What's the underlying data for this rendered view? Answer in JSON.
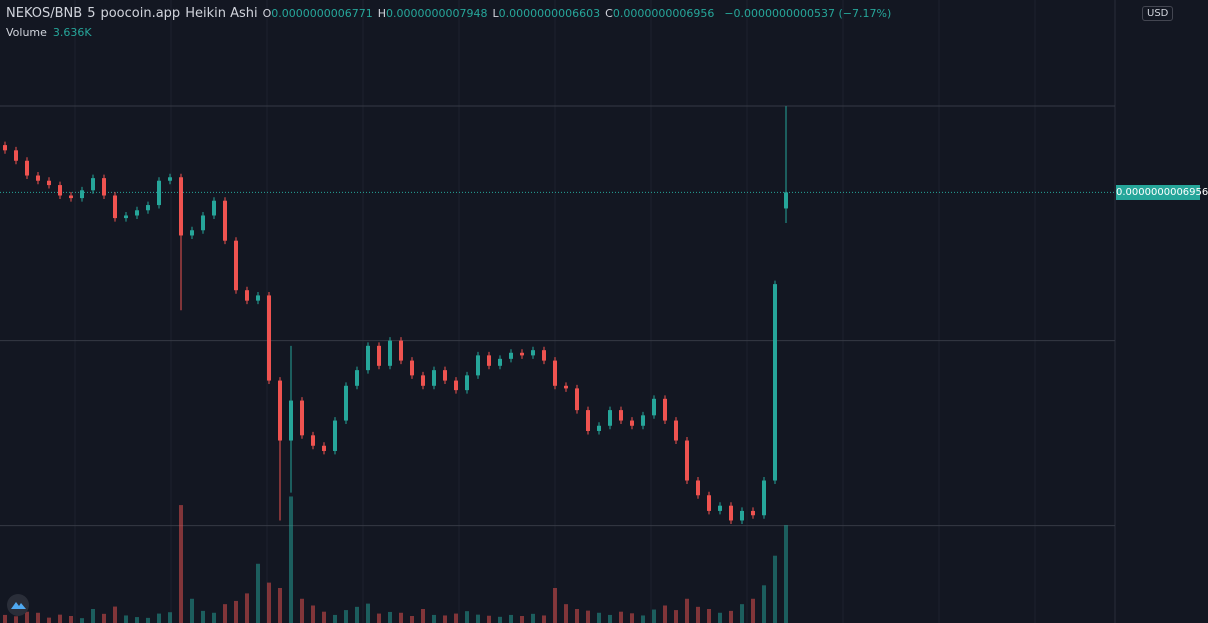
{
  "chart_data": {
    "type": "candlestick",
    "legend": {
      "symbol": "NEKOS/BNB",
      "interval": "5",
      "source": "poocoin.app",
      "style": "Heikin Ashi",
      "ohlc": [
        {
          "key": "O",
          "value": "0.0000000006771"
        },
        {
          "key": "H",
          "value": "0.0000000007948"
        },
        {
          "key": "L",
          "value": "0.0000000006603"
        },
        {
          "key": "C",
          "value": "0.0000000006956"
        }
      ],
      "change": "−0.0000000000537 (−7.17%)",
      "volume_title": "Volume",
      "volume_value": "3.636K"
    },
    "currency": "USD",
    "last_price": {
      "value": 6.956e-10,
      "label": "0.0000000006956"
    },
    "up_color": "#26a69a",
    "down_color": "#ef5350",
    "ylim": [
      2e-10,
      9.17e-10
    ],
    "hlines": [
      7.95e-10,
      5.25e-10,
      3.12e-10
    ],
    "volume_lim": [
      0,
      5200
    ],
    "open": [
      7.5e-10,
      7.44e-10,
      7.32e-10,
      7.15e-10,
      7.09e-10,
      7.04e-10,
      6.92e-10,
      6.89e-10,
      6.98e-10,
      7.12e-10,
      6.92e-10,
      6.66e-10,
      6.69e-10,
      6.75e-10,
      6.81e-10,
      7.09e-10,
      7.13e-10,
      6.46e-10,
      6.52e-10,
      6.69e-10,
      6.86e-10,
      6.4e-10,
      5.83e-10,
      5.71e-10,
      5.77e-10,
      4.79e-10,
      4.1e-10,
      4.56e-10,
      4.16e-10,
      4.04e-10,
      3.98e-10,
      4.33e-10,
      4.73e-10,
      4.91e-10,
      5.19e-10,
      4.96e-10,
      5.25e-10,
      5.02e-10,
      4.85e-10,
      4.73e-10,
      4.91e-10,
      4.79e-10,
      4.68e-10,
      4.85e-10,
      5.08e-10,
      4.96e-10,
      5.04e-10,
      5.11e-10,
      5.08e-10,
      5.14e-10,
      5.02e-10,
      4.73e-10,
      4.7e-10,
      4.45e-10,
      4.21e-10,
      4.27e-10,
      4.45e-10,
      4.33e-10,
      4.27e-10,
      4.39e-10,
      4.58e-10,
      4.33e-10,
      4.1e-10,
      3.64e-10,
      3.47e-10,
      3.29e-10,
      3.35e-10,
      3.18e-10,
      3.29e-10,
      3.24e-10,
      3.64e-10,
      6.771e-10
    ],
    "high": [
      7.54e-10,
      7.48e-10,
      7.36e-10,
      7.19e-10,
      7.13e-10,
      7.08e-10,
      6.96e-10,
      7.02e-10,
      7.16e-10,
      7.16e-10,
      6.96e-10,
      6.73e-10,
      6.79e-10,
      6.85e-10,
      7.13e-10,
      7.17e-10,
      7.17e-10,
      6.56e-10,
      6.73e-10,
      6.9e-10,
      6.9e-10,
      6.44e-10,
      5.87e-10,
      5.81e-10,
      5.81e-10,
      4.83e-10,
      5.19e-10,
      4.6e-10,
      4.2e-10,
      4.08e-10,
      4.37e-10,
      4.77e-10,
      4.95e-10,
      5.23e-10,
      5.23e-10,
      5.29e-10,
      5.29e-10,
      5.06e-10,
      4.89e-10,
      4.95e-10,
      4.95e-10,
      4.83e-10,
      4.89e-10,
      5.12e-10,
      5.12e-10,
      5.08e-10,
      5.15e-10,
      5.15e-10,
      5.18e-10,
      5.18e-10,
      5.06e-10,
      4.77e-10,
      4.74e-10,
      4.49e-10,
      4.31e-10,
      4.49e-10,
      4.49e-10,
      4.37e-10,
      4.43e-10,
      4.62e-10,
      4.62e-10,
      4.37e-10,
      4.14e-10,
      3.68e-10,
      3.51e-10,
      3.39e-10,
      3.39e-10,
      3.33e-10,
      3.33e-10,
      3.68e-10,
      5.94e-10,
      7.948e-10
    ],
    "low": [
      7.4e-10,
      7.28e-10,
      7.11e-10,
      7.05e-10,
      7e-10,
      6.88e-10,
      6.85e-10,
      6.85e-10,
      6.94e-10,
      6.88e-10,
      6.62e-10,
      6.62e-10,
      6.65e-10,
      6.71e-10,
      6.77e-10,
      7.05e-10,
      5.6e-10,
      6.42e-10,
      6.48e-10,
      6.65e-10,
      6.36e-10,
      5.79e-10,
      5.67e-10,
      5.67e-10,
      4.75e-10,
      3.18e-10,
      3.5e-10,
      4.12e-10,
      4e-10,
      3.94e-10,
      3.94e-10,
      4.29e-10,
      4.69e-10,
      4.87e-10,
      4.92e-10,
      4.92e-10,
      4.98e-10,
      4.81e-10,
      4.69e-10,
      4.69e-10,
      4.75e-10,
      4.64e-10,
      4.64e-10,
      4.81e-10,
      4.92e-10,
      4.92e-10,
      5e-10,
      5.04e-10,
      5.04e-10,
      4.98e-10,
      4.69e-10,
      4.66e-10,
      4.41e-10,
      4.17e-10,
      4.17e-10,
      4.23e-10,
      4.29e-10,
      4.23e-10,
      4.23e-10,
      4.35e-10,
      4.29e-10,
      4.06e-10,
      3.6e-10,
      3.43e-10,
      3.25e-10,
      3.25e-10,
      3.14e-10,
      3.14e-10,
      3.2e-10,
      3.2e-10,
      3.6e-10,
      6.603e-10
    ],
    "close": [
      7.44e-10,
      7.32e-10,
      7.15e-10,
      7.09e-10,
      7.04e-10,
      6.92e-10,
      6.89e-10,
      6.98e-10,
      7.12e-10,
      6.92e-10,
      6.66e-10,
      6.69e-10,
      6.75e-10,
      6.81e-10,
      7.09e-10,
      7.13e-10,
      6.46e-10,
      6.52e-10,
      6.69e-10,
      6.86e-10,
      6.4e-10,
      5.83e-10,
      5.71e-10,
      5.77e-10,
      4.79e-10,
      4.1e-10,
      4.56e-10,
      4.16e-10,
      4.04e-10,
      3.98e-10,
      4.33e-10,
      4.73e-10,
      4.91e-10,
      5.19e-10,
      4.96e-10,
      5.25e-10,
      5.02e-10,
      4.85e-10,
      4.73e-10,
      4.91e-10,
      4.79e-10,
      4.68e-10,
      4.85e-10,
      5.08e-10,
      4.96e-10,
      5.04e-10,
      5.11e-10,
      5.08e-10,
      5.14e-10,
      5.02e-10,
      4.73e-10,
      4.7e-10,
      4.45e-10,
      4.21e-10,
      4.27e-10,
      4.45e-10,
      4.33e-10,
      4.27e-10,
      4.39e-10,
      4.58e-10,
      4.33e-10,
      4.1e-10,
      3.64e-10,
      3.47e-10,
      3.29e-10,
      3.35e-10,
      3.18e-10,
      3.29e-10,
      3.24e-10,
      3.64e-10,
      5.9e-10,
      6.956e-10
    ],
    "volume": [
      300,
      250,
      420,
      380,
      200,
      310,
      260,
      180,
      520,
      340,
      610,
      280,
      220,
      190,
      350,
      400,
      4380,
      900,
      450,
      380,
      700,
      820,
      1100,
      2200,
      1500,
      1300,
      4700,
      900,
      650,
      420,
      300,
      480,
      600,
      720,
      350,
      410,
      380,
      260,
      520,
      300,
      280,
      350,
      440,
      310,
      270,
      230,
      300,
      260,
      340,
      280,
      1300,
      700,
      520,
      460,
      380,
      300,
      420,
      360,
      280,
      500,
      650,
      480,
      900,
      600,
      520,
      380,
      450,
      700,
      900,
      1400,
      2500,
      3636
    ]
  }
}
